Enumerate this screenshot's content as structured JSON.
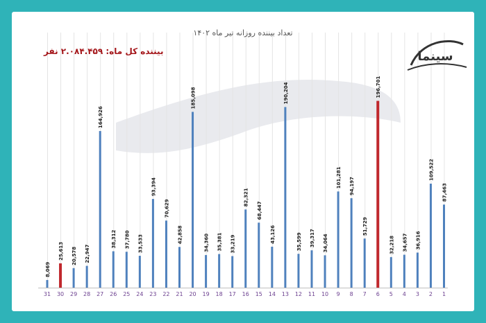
{
  "chart_data": {
    "type": "bar",
    "title": "تعداد بیننده روزانه تیر ماه ۱۴۰۲",
    "subtitle": "بیننده کل ماه: ۲.۰۸۴.۴۵۹ نفر",
    "categories": [
      "31",
      "30",
      "29",
      "28",
      "27",
      "26",
      "25",
      "24",
      "23",
      "22",
      "21",
      "20",
      "19",
      "18",
      "17",
      "16",
      "15",
      "14",
      "13",
      "12",
      "11",
      "10",
      "9",
      "8",
      "7",
      "6",
      "5",
      "4",
      "3",
      "2",
      "1"
    ],
    "values": [
      8069,
      25613,
      20578,
      22947,
      164926,
      38312,
      37780,
      33533,
      93394,
      70629,
      42858,
      185098,
      34360,
      35381,
      33219,
      82321,
      68447,
      43126,
      190204,
      35599,
      39317,
      34064,
      101281,
      94197,
      51729,
      196701,
      32218,
      34657,
      36916,
      109522,
      87463
    ],
    "highlight_categories": [
      "30",
      "6"
    ],
    "colors": {
      "bar": "#4f81bd",
      "highlight": "#c0282d",
      "label": "#222222",
      "tick_label": "#6b3f8f"
    },
    "ylim": [
      0,
      200000
    ],
    "grid": "vertical"
  },
  "logo": {
    "text": "سینما"
  }
}
